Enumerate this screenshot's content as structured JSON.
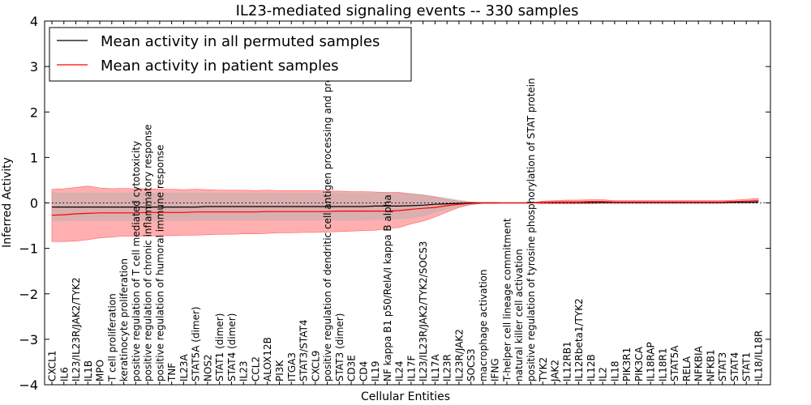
{
  "chart_data": {
    "type": "line",
    "title": "IL23-mediated signaling events -- 330 samples",
    "xlabel": "Cellular Entities",
    "ylabel": "Inferred Activity",
    "ylim": [
      -4,
      4
    ],
    "yticks": [
      -4,
      -3,
      -2,
      -1,
      0,
      1,
      2,
      3,
      4
    ],
    "ytick_labels": [
      "−4",
      "−3",
      "−2",
      "−1",
      "0",
      "1",
      "2",
      "3",
      "4"
    ],
    "grid": false,
    "legend_position": "top-left",
    "colors": {
      "permuted": "#000000",
      "patient": "#ff0000",
      "band": "#ff9999",
      "band_permuted": "#b0b0b0"
    },
    "categories": [
      "CXCL1",
      "IL6",
      "IL23/IL23R/JAK2/TYK2",
      "IL1B",
      "MPO",
      "T cell proliferation",
      "keratinocyte proliferation",
      "positive regulation of T cell mediated cytotoxicity",
      "positive regulation of chronic inflammatory response",
      "positive regulation of humoral immune response",
      "TNF",
      "IL23A",
      "STAT5A (dimer)",
      "NOS2",
      "STAT1 (dimer)",
      "STAT4 (dimer)",
      "IL23",
      "CCL2",
      "ALOX12B",
      "PI3K",
      "ITGA3",
      "STAT3/STAT4",
      "CXCL9",
      "positive regulation of dendritic cell antigen processing and presentation",
      "STAT3 (dimer)",
      "CD3E",
      "CD4",
      "IL19",
      "NF kappa B1 p50/RelA/I kappa B alpha",
      "IL24",
      "IL17F",
      "IL23/IL23R/JAK2/TYK2/SOCS3",
      "IL17A",
      "IL23R",
      "IL23R/JAK2",
      "SOCS3",
      "macrophage activation",
      "IFNG",
      "T-helper cell lineage commitment",
      "natural killer cell activation",
      "positive regulation of tyrosine phosphorylation of STAT protein",
      "TYK2",
      "JAK2",
      "IL12RB1",
      "IL12Rbeta1/TYK2",
      "IL12B",
      "IL2",
      "IL18",
      "PIK3R1",
      "PIK3CA",
      "IL18RAP",
      "IL18R1",
      "STAT5A",
      "RELA",
      "NFKBIA",
      "NFKB1",
      "STAT3",
      "STAT4",
      "STAT1",
      "IL18/IL18R"
    ],
    "series": [
      {
        "name": "Mean activity in all permuted samples",
        "color": "#000000",
        "values": [
          -0.09,
          -0.09,
          -0.09,
          -0.09,
          -0.09,
          -0.09,
          -0.09,
          -0.09,
          -0.09,
          -0.09,
          -0.09,
          -0.09,
          -0.09,
          -0.08,
          -0.08,
          -0.08,
          -0.08,
          -0.08,
          -0.08,
          -0.08,
          -0.08,
          -0.08,
          -0.08,
          -0.08,
          -0.08,
          -0.08,
          -0.08,
          -0.07,
          -0.07,
          -0.07,
          -0.06,
          -0.05,
          -0.03,
          -0.02,
          -0.01,
          0.0,
          0.0,
          0.0,
          0.0,
          0.0,
          0.0,
          0.01,
          0.01,
          0.01,
          0.01,
          0.01,
          0.01,
          0.01,
          0.01,
          0.01,
          0.01,
          0.01,
          0.01,
          0.01,
          0.01,
          0.01,
          0.01,
          0.01,
          0.01,
          0.02
        ],
        "upper": [
          0.23,
          0.23,
          0.23,
          0.23,
          0.23,
          0.23,
          0.23,
          0.23,
          0.23,
          0.23,
          0.23,
          0.23,
          0.23,
          0.23,
          0.23,
          0.23,
          0.23,
          0.23,
          0.23,
          0.23,
          0.23,
          0.23,
          0.23,
          0.23,
          0.23,
          0.23,
          0.23,
          0.23,
          0.23,
          0.22,
          0.21,
          0.19,
          0.15,
          0.11,
          0.07,
          0.03,
          0.01,
          0.01,
          0.0,
          0.0,
          0.0,
          0.02,
          0.03,
          0.03,
          0.03,
          0.03,
          0.03,
          0.03,
          0.03,
          0.03,
          0.03,
          0.03,
          0.03,
          0.03,
          0.03,
          0.03,
          0.03,
          0.03,
          0.03,
          0.04
        ],
        "lower": [
          -0.4,
          -0.4,
          -0.4,
          -0.4,
          -0.4,
          -0.4,
          -0.4,
          -0.4,
          -0.4,
          -0.4,
          -0.4,
          -0.4,
          -0.4,
          -0.39,
          -0.39,
          -0.39,
          -0.39,
          -0.39,
          -0.39,
          -0.39,
          -0.39,
          -0.39,
          -0.39,
          -0.39,
          -0.39,
          -0.39,
          -0.39,
          -0.38,
          -0.37,
          -0.36,
          -0.34,
          -0.3,
          -0.22,
          -0.15,
          -0.09,
          -0.04,
          -0.02,
          -0.01,
          0.0,
          0.0,
          0.0,
          -0.01,
          -0.01,
          -0.01,
          -0.01,
          -0.01,
          -0.01,
          -0.01,
          -0.01,
          -0.01,
          -0.01,
          -0.01,
          -0.01,
          -0.01,
          -0.01,
          -0.01,
          -0.01,
          -0.01,
          -0.01,
          -0.01
        ]
      },
      {
        "name": "Mean activity in patient samples",
        "color": "#ff0000",
        "values": [
          -0.27,
          -0.26,
          -0.24,
          -0.23,
          -0.22,
          -0.22,
          -0.22,
          -0.22,
          -0.21,
          -0.21,
          -0.21,
          -0.21,
          -0.2,
          -0.2,
          -0.2,
          -0.2,
          -0.2,
          -0.2,
          -0.19,
          -0.19,
          -0.19,
          -0.19,
          -0.19,
          -0.19,
          -0.18,
          -0.18,
          -0.18,
          -0.18,
          -0.18,
          -0.17,
          -0.14,
          -0.12,
          -0.1,
          -0.06,
          -0.03,
          -0.01,
          0.0,
          0.0,
          0.0,
          0.0,
          0.0,
          0.01,
          0.02,
          0.02,
          0.02,
          0.03,
          0.03,
          0.02,
          0.02,
          0.02,
          0.02,
          0.02,
          0.02,
          0.02,
          0.02,
          0.02,
          0.02,
          0.03,
          0.04,
          0.05
        ],
        "upper": [
          0.3,
          0.31,
          0.34,
          0.37,
          0.33,
          0.31,
          0.32,
          0.31,
          0.31,
          0.3,
          0.3,
          0.29,
          0.3,
          0.29,
          0.28,
          0.28,
          0.28,
          0.27,
          0.28,
          0.27,
          0.27,
          0.27,
          0.27,
          0.26,
          0.26,
          0.25,
          0.25,
          0.24,
          0.23,
          0.23,
          0.2,
          0.17,
          0.13,
          0.08,
          0.04,
          0.02,
          0.01,
          0.01,
          0.0,
          0.0,
          0.0,
          0.04,
          0.05,
          0.06,
          0.06,
          0.07,
          0.07,
          0.05,
          0.05,
          0.05,
          0.05,
          0.05,
          0.05,
          0.05,
          0.05,
          0.05,
          0.05,
          0.06,
          0.08,
          0.1
        ],
        "lower": [
          -0.85,
          -0.85,
          -0.84,
          -0.81,
          -0.77,
          -0.75,
          -0.73,
          -0.74,
          -0.73,
          -0.72,
          -0.72,
          -0.71,
          -0.71,
          -0.7,
          -0.69,
          -0.69,
          -0.68,
          -0.68,
          -0.67,
          -0.66,
          -0.66,
          -0.65,
          -0.65,
          -0.64,
          -0.63,
          -0.62,
          -0.61,
          -0.6,
          -0.57,
          -0.54,
          -0.46,
          -0.4,
          -0.31,
          -0.2,
          -0.1,
          -0.04,
          -0.01,
          -0.01,
          0.0,
          0.0,
          0.0,
          -0.02,
          -0.02,
          -0.02,
          -0.02,
          -0.02,
          -0.01,
          -0.01,
          -0.01,
          -0.01,
          -0.01,
          -0.01,
          -0.01,
          -0.01,
          -0.01,
          -0.01,
          -0.01,
          0.0,
          0.0,
          0.0
        ]
      }
    ]
  }
}
